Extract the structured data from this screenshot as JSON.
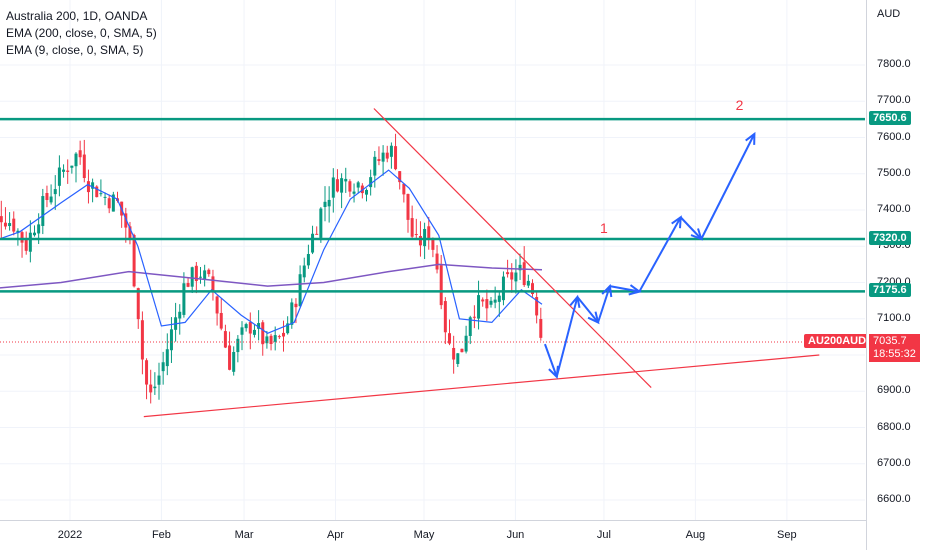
{
  "legend": {
    "title": "Australia 200, 1D, OANDA",
    "ema200": "EMA (200, close, 0, SMA, 5)",
    "ema9": "EMA (9, close, 0, SMA, 5)"
  },
  "currency": "AUD",
  "symbol": "AU200AUD",
  "current_price": "7035.7",
  "countdown": "18:55:32",
  "wave_labels": [
    "1",
    "2"
  ],
  "colors": {
    "up": "#089981",
    "down": "#f23645",
    "ema9": "#2962ff",
    "ema200": "#7e57c2",
    "levels": "#089981",
    "trendline": "#f23645",
    "projection": "#2962ff"
  },
  "chart_data": {
    "type": "candlestick",
    "instrument": "Australia 200",
    "interval": "1D",
    "source": "OANDA",
    "ylim": [
      6550,
      7980
    ],
    "y_ticks": [
      "7800.0",
      "7700.0",
      "7600.0",
      "7500.0",
      "7400.0",
      "7300.0",
      "7200.0",
      "7100.0",
      "7000.0",
      "6900.0",
      "6800.0",
      "6700.0",
      "6600.0"
    ],
    "x_ticks": [
      "2022",
      "Feb",
      "Mar",
      "Apr",
      "May",
      "Jun",
      "Jul",
      "Aug",
      "Sep"
    ],
    "horizontal_levels": [
      7650.6,
      7320.0,
      7175.6
    ],
    "level_labels": [
      "7650.6",
      "7320.0",
      "7175.6"
    ],
    "last_price": 7035.7,
    "close_path": [
      [
        "2021-12-01",
        7330
      ],
      [
        "2021-12-08",
        7390
      ],
      [
        "2021-12-13",
        7360
      ],
      [
        "2021-12-17",
        7300
      ],
      [
        "2021-12-22",
        7400
      ],
      [
        "2021-12-29",
        7500
      ],
      [
        "2022-01-04",
        7560
      ],
      [
        "2022-01-07",
        7480
      ],
      [
        "2022-01-12",
        7440
      ],
      [
        "2022-01-17",
        7420
      ],
      [
        "2022-01-21",
        7330
      ],
      [
        "2022-01-24",
        7130
      ],
      [
        "2022-01-26",
        6950
      ],
      [
        "2022-01-28",
        6880
      ],
      [
        "2022-02-01",
        6960
      ],
      [
        "2022-02-04",
        7050
      ],
      [
        "2022-02-09",
        7200
      ],
      [
        "2022-02-14",
        7230
      ],
      [
        "2022-02-18",
        7190
      ],
      [
        "2022-02-24",
        6980
      ],
      [
        "2022-02-28",
        7050
      ],
      [
        "2022-03-04",
        7090
      ],
      [
        "2022-03-09",
        7020
      ],
      [
        "2022-03-14",
        7050
      ],
      [
        "2022-03-18",
        7140
      ],
      [
        "2022-03-23",
        7300
      ],
      [
        "2022-03-28",
        7420
      ],
      [
        "2022-04-01",
        7480
      ],
      [
        "2022-04-06",
        7480
      ],
      [
        "2022-04-11",
        7470
      ],
      [
        "2022-04-14",
        7520
      ],
      [
        "2022-04-19",
        7570
      ],
      [
        "2022-04-21",
        7550
      ],
      [
        "2022-04-26",
        7360
      ],
      [
        "2022-04-28",
        7300
      ],
      [
        "2022-05-03",
        7340
      ],
      [
        "2022-05-06",
        7220
      ],
      [
        "2022-05-09",
        7030
      ],
      [
        "2022-05-11",
        7010
      ],
      [
        "2022-05-13",
        6990
      ],
      [
        "2022-05-17",
        7130
      ],
      [
        "2022-05-20",
        7140
      ],
      [
        "2022-05-24",
        7120
      ],
      [
        "2022-05-27",
        7180
      ],
      [
        "2022-05-31",
        7220
      ],
      [
        "2022-06-03",
        7230
      ],
      [
        "2022-06-06",
        7200
      ],
      [
        "2022-06-08",
        7140
      ],
      [
        "2022-06-10",
        7035.7
      ]
    ],
    "ema9": [
      [
        "2021-12-01",
        7300
      ],
      [
        "2021-12-15",
        7340
      ],
      [
        "2021-12-29",
        7420
      ],
      [
        "2022-01-07",
        7470
      ],
      [
        "2022-01-17",
        7430
      ],
      [
        "2022-01-24",
        7300
      ],
      [
        "2022-02-01",
        7080
      ],
      [
        "2022-02-09",
        7090
      ],
      [
        "2022-02-18",
        7180
      ],
      [
        "2022-02-28",
        7110
      ],
      [
        "2022-03-09",
        7060
      ],
      [
        "2022-03-18",
        7090
      ],
      [
        "2022-03-28",
        7290
      ],
      [
        "2022-04-06",
        7430
      ],
      [
        "2022-04-19",
        7510
      ],
      [
        "2022-04-26",
        7460
      ],
      [
        "2022-05-06",
        7330
      ],
      [
        "2022-05-13",
        7100
      ],
      [
        "2022-05-24",
        7090
      ],
      [
        "2022-06-03",
        7180
      ],
      [
        "2022-06-10",
        7140
      ]
    ],
    "ema200": [
      [
        "2021-12-01",
        7180
      ],
      [
        "2021-12-29",
        7200
      ],
      [
        "2022-01-21",
        7230
      ],
      [
        "2022-02-14",
        7210
      ],
      [
        "2022-03-09",
        7190
      ],
      [
        "2022-03-28",
        7200
      ],
      [
        "2022-04-19",
        7230
      ],
      [
        "2022-05-06",
        7250
      ],
      [
        "2022-05-24",
        7240
      ],
      [
        "2022-06-10",
        7235
      ]
    ],
    "resistance_trendline": [
      [
        "2022-04-14",
        7680
      ],
      [
        "2022-07-17",
        6910
      ]
    ],
    "support_trendline": [
      [
        "2022-01-26",
        6830
      ],
      [
        "2022-09-12",
        7000
      ]
    ],
    "projection_path": [
      [
        "2022-06-11",
        7030
      ],
      [
        "2022-06-15",
        6940
      ],
      [
        "2022-06-22",
        7160
      ],
      [
        "2022-06-29",
        7090
      ],
      [
        "2022-07-03",
        7190
      ],
      [
        "2022-07-13",
        7175
      ],
      [
        "2022-07-27",
        7380
      ],
      [
        "2022-08-03",
        7320
      ],
      [
        "2022-08-21",
        7610
      ]
    ]
  }
}
